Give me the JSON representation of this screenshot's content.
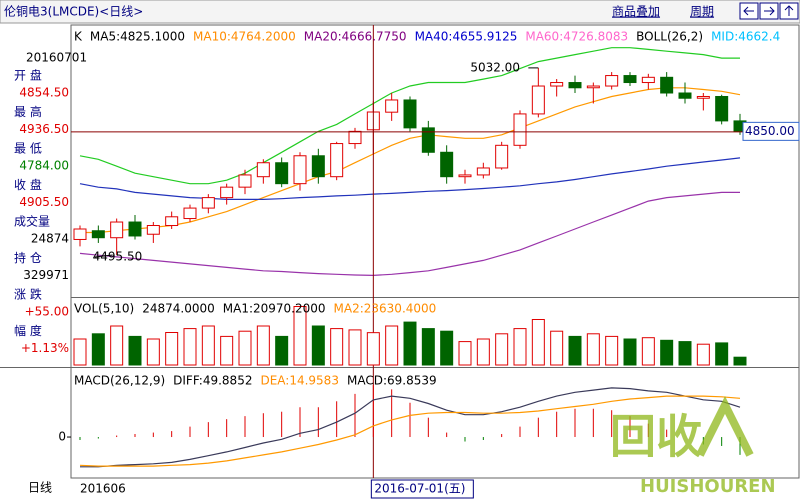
{
  "header": {
    "title": "伦铜电3(LMCDE)<日线>",
    "buttons": [
      "商品叠加",
      "周期"
    ]
  },
  "info_panel": {
    "date": "20160701",
    "rows": [
      {
        "label": "开 盘",
        "value": "4854.50",
        "color": "#e00000"
      },
      {
        "label": "最 高",
        "value": "4936.50",
        "color": "#e00000"
      },
      {
        "label": "最 低",
        "value": "4784.00",
        "color": "#008000"
      },
      {
        "label": "收 盘",
        "value": "4905.50",
        "color": "#e00000"
      },
      {
        "label": "成交量",
        "value": "24874",
        "color": "#000000"
      },
      {
        "label": "持 仓",
        "value": "329971",
        "color": "#000000"
      },
      {
        "label": "涨 跌",
        "value": "+55.00",
        "color": "#e00000"
      },
      {
        "label": "幅 度",
        "value": "+1.13%",
        "color": "#e00000"
      }
    ]
  },
  "period_label": "日线",
  "watermark": {
    "text": "回收",
    "sub": "HUISHOUREN"
  },
  "chart_data": [
    {
      "type": "candlestick",
      "up_color": "#e00000",
      "down_color": "#006400",
      "categories": [
        "201606",
        null,
        null,
        null,
        null,
        null,
        null,
        null,
        null,
        null,
        null,
        null,
        null,
        null,
        null,
        null,
        "2016-07-01(五)",
        null,
        null,
        null,
        null,
        null,
        null,
        null,
        null,
        null,
        null,
        null,
        null,
        null,
        null,
        null,
        null,
        null,
        null,
        null,
        null
      ],
      "open": [
        4540,
        4565,
        4545,
        4590,
        4555,
        4580,
        4600,
        4630,
        4660,
        4690,
        4720,
        4760,
        4700,
        4780,
        4720,
        4815,
        4854.5,
        4905,
        4940,
        4860,
        4790,
        4720,
        4725,
        4745,
        4810,
        4900,
        4980,
        4990,
        4975,
        4980,
        5010,
        4990,
        5005,
        4960,
        4945,
        4950,
        4880
      ],
      "high": [
        4580,
        4580,
        4600,
        4610,
        4590,
        4620,
        4640,
        4670,
        4700,
        4740,
        4770,
        4775,
        4790,
        4800,
        4820,
        4860,
        4936.5,
        4960,
        4950,
        4880,
        4810,
        4740,
        4760,
        4820,
        4910,
        5032,
        5000,
        5010,
        4990,
        5020,
        5020,
        5015,
        5020,
        4990,
        4960,
        4955,
        4900
      ],
      "low": [
        4520,
        4530,
        4495.5,
        4540,
        4530,
        4570,
        4590,
        4615,
        4640,
        4670,
        4700,
        4690,
        4680,
        4700,
        4710,
        4800,
        4784,
        4880,
        4850,
        4780,
        4700,
        4700,
        4715,
        4740,
        4800,
        4890,
        4950,
        4960,
        4930,
        4970,
        4980,
        4970,
        4950,
        4930,
        4910,
        4870,
        4840
      ],
      "close": [
        4570,
        4545,
        4590,
        4550,
        4580,
        4605,
        4630,
        4660,
        4690,
        4725,
        4760,
        4700,
        4780,
        4720,
        4815,
        4850,
        4905.5,
        4940,
        4860,
        4790,
        4720,
        4725,
        4745,
        4810,
        4900,
        4980,
        4990,
        4975,
        4980,
        5010,
        4990,
        5005,
        4960,
        4945,
        4950,
        4880,
        4850
      ],
      "ylim": [
        4375,
        5155
      ],
      "high_label": {
        "value": 5032,
        "label": "5032.00"
      },
      "low_label": {
        "value": 4495.5,
        "label": "4495.50"
      },
      "last_price": {
        "value": 4850,
        "label": "4850.00"
      },
      "indicator_labels": [
        {
          "text": "K",
          "color": "#000000"
        },
        {
          "text": "MA5:4825.1000",
          "color": "#000000"
        },
        {
          "text": "MA10:4764.2000",
          "color": "#ff8c00"
        },
        {
          "text": "MA20:4666.7750",
          "color": "#800080"
        },
        {
          "text": "MA40:4655.9125",
          "color": "#0000cd"
        },
        {
          "text": "MA60:4726.8083",
          "color": "#ff66cc"
        },
        {
          "text": "BOLL(26,2)",
          "color": "#000000"
        },
        {
          "text": "MID:4662.4",
          "color": "#00c0ff"
        }
      ],
      "lines": [
        {
          "color": "#22cc22",
          "values": [
            4780,
            4770,
            4750,
            4730,
            4720,
            4710,
            4700,
            4700,
            4710,
            4730,
            4760,
            4790,
            4820,
            4850,
            4870,
            4900,
            4930,
            4960,
            4980,
            4990,
            4990,
            4990,
            5000,
            5010,
            5030,
            5050,
            5060,
            5070,
            5080,
            5090,
            5090,
            5085,
            5080,
            5075,
            5070,
            5060,
            5060
          ]
        },
        {
          "color": "#9933aa",
          "values": [
            4500,
            4495,
            4490,
            4485,
            4480,
            4475,
            4470,
            4465,
            4460,
            4455,
            4450,
            4448,
            4445,
            4442,
            4440,
            4438,
            4437,
            4440,
            4445,
            4450,
            4460,
            4470,
            4480,
            4495,
            4510,
            4530,
            4550,
            4570,
            4590,
            4610,
            4630,
            4650,
            4660,
            4665,
            4670,
            4675,
            4675
          ]
        },
        {
          "color": "#ff9900",
          "values": [
            4560,
            4560,
            4565,
            4570,
            4575,
            4580,
            4590,
            4605,
            4620,
            4640,
            4660,
            4680,
            4700,
            4720,
            4735,
            4760,
            4785,
            4810,
            4830,
            4840,
            4835,
            4830,
            4830,
            4840,
            4860,
            4880,
            4900,
            4920,
            4935,
            4950,
            4960,
            4970,
            4975,
            4975,
            4970,
            4965,
            4955
          ]
        },
        {
          "color": "#2233bb",
          "values": [
            4700,
            4690,
            4685,
            4675,
            4670,
            4665,
            4660,
            4658,
            4655,
            4655,
            4655,
            4657,
            4660,
            4662,
            4665,
            4667,
            4670,
            4672,
            4675,
            4678,
            4680,
            4683,
            4686,
            4690,
            4694,
            4700,
            4705,
            4712,
            4720,
            4728,
            4735,
            4742,
            4750,
            4756,
            4762,
            4768,
            4774
          ]
        }
      ]
    },
    {
      "type": "volume",
      "ylim": [
        0,
        50000
      ],
      "indicator_labels": [
        {
          "text": "VOL(5,10)",
          "color": "#000000"
        },
        {
          "text": "24874.0000",
          "color": "#000000"
        },
        {
          "text": "MA1:20970.2000",
          "color": "#000000"
        },
        {
          "text": "MA2:23630.4000",
          "color": "#ff8c00"
        }
      ],
      "values": [
        20000,
        24000,
        30000,
        22000,
        20000,
        25000,
        28000,
        30000,
        22000,
        26000,
        30000,
        22000,
        45000,
        30000,
        28000,
        27000,
        24874,
        30000,
        33000,
        28000,
        26000,
        18000,
        20000,
        24000,
        28000,
        35000,
        26000,
        22000,
        24000,
        22000,
        20000,
        21000,
        19000,
        18000,
        16000,
        17000,
        6000
      ]
    },
    {
      "type": "macd",
      "ylim": [
        -55,
        90
      ],
      "yticks": [
        0
      ],
      "up_color": "#e00000",
      "down_color": "#008000",
      "indicator_labels": [
        {
          "text": "MACD(26,12,9)",
          "color": "#000000"
        },
        {
          "text": "DIFF:49.8852",
          "color": "#000000"
        },
        {
          "text": "DEA:14.9583",
          "color": "#ff8c00"
        },
        {
          "text": "MACD:69.8539",
          "color": "#000000"
        }
      ],
      "diff": {
        "color": "#3a3a5a",
        "values": [
          -40,
          -40,
          -38,
          -37,
          -36,
          -34,
          -30,
          -25,
          -20,
          -14,
          -8,
          -3,
          5,
          10,
          20,
          32,
          49.8852,
          55,
          52,
          45,
          36,
          30,
          30,
          34,
          40,
          48,
          55,
          60,
          63,
          66,
          65,
          62,
          60,
          55,
          50,
          48,
          40
        ]
      },
      "dea": {
        "color": "#ff9900",
        "values": [
          -38,
          -39,
          -39,
          -39,
          -39,
          -38,
          -37,
          -35,
          -32,
          -28,
          -24,
          -20,
          -15,
          -10,
          -4,
          3,
          14.9583,
          23,
          29,
          32,
          33,
          33,
          32,
          32,
          33,
          35,
          38,
          41,
          44,
          48,
          51,
          53,
          55,
          55,
          55,
          54,
          52
        ]
      },
      "values": [
        -4,
        -2,
        2,
        4,
        6,
        8,
        14,
        20,
        24,
        28,
        32,
        34,
        40,
        40,
        48,
        58,
        69.8539,
        64,
        46,
        26,
        6,
        -6,
        -4,
        4,
        14,
        26,
        34,
        38,
        38,
        36,
        28,
        18,
        10,
        0,
        -10,
        -12,
        -24
      ]
    }
  ]
}
